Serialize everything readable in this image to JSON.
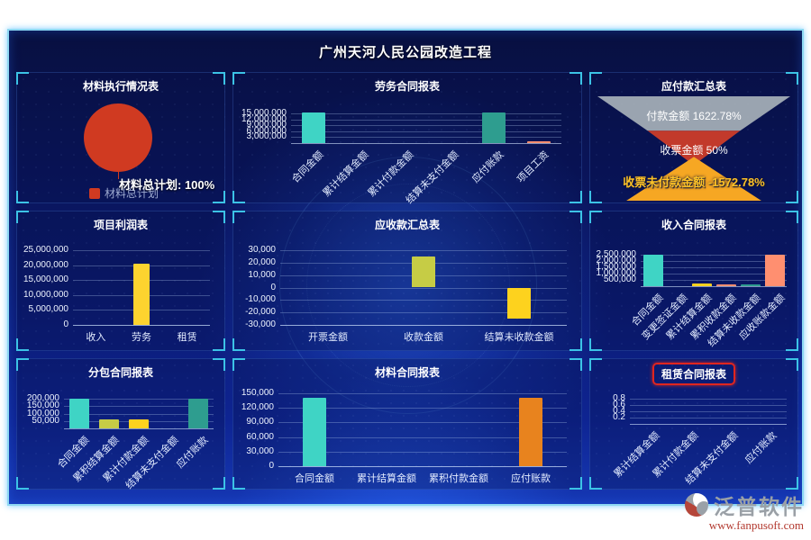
{
  "header": {
    "title": "广州天河人民公园改造工程"
  },
  "footer_logo": {
    "brand": "泛普软件",
    "url": "www.fanpusoft.com"
  },
  "colors": {
    "accent_cyan": "#3fd4c5",
    "teal": "#2e9d8f",
    "gold": "#fdd32f",
    "olive": "#c6cc45",
    "orange": "#e8831e",
    "salmon": "#ff8f70",
    "pie_red": "#d03a21",
    "bracket_cyan": "#3cc3e6",
    "highlight_red": "#e0251f"
  },
  "chart_data": [
    {
      "type": "pie",
      "title": "材料执行情况表",
      "series": [
        {
          "name": "材料总计划",
          "value": 100,
          "unit": "%"
        }
      ],
      "pie_color": "#d03a21",
      "center_label": "材料总计划: 100%",
      "legend": [
        "材料总计划"
      ],
      "legend_position": "bottom"
    },
    {
      "type": "bar",
      "title": "劳务合同报表",
      "categories": [
        "合同金额",
        "累计结算金额",
        "累计付款金额",
        "结算未支付金额",
        "应付账款",
        "项目工资"
      ],
      "values": [
        15500000,
        0,
        0,
        0,
        15300000,
        60000
      ],
      "bar_colors": [
        "#3fd4c5",
        "#3fd4c5",
        "#3fd4c5",
        "#3fd4c5",
        "#2e9d8f",
        "#ff8f70"
      ],
      "yticks": [
        {
          "label": "15,000,000",
          "v": 15000000
        },
        {
          "label": "12,000,000",
          "v": 12000000
        },
        {
          "label": "9,000,000",
          "v": 9000000
        },
        {
          "label": "6,000,000",
          "v": 6000000
        },
        {
          "label": "3,000,000",
          "v": 3000000
        }
      ],
      "ylim": [
        0,
        15000000
      ],
      "label_rotate": true,
      "grid": true
    },
    {
      "type": "funnel",
      "title": "应付款汇总表",
      "items": [
        {
          "label": "付款金额",
          "value": "1622.78%",
          "color": "#a7b1b8",
          "text_color": "#ffffff"
        },
        {
          "label": "收票金额",
          "value": "50%",
          "color": "#c23a2b",
          "text_color": "#ffffff"
        },
        {
          "label": "收票未付款金额",
          "value": "-1572.78%",
          "color": "#f6a723",
          "text_color": "#ffc226"
        }
      ]
    },
    {
      "type": "bar",
      "title": "项目利润表",
      "categories": [
        "收入",
        "劳务",
        "租赁"
      ],
      "values": [
        0,
        20500000,
        0
      ],
      "bar_colors": [
        "#fdd32f",
        "#fdd32f",
        "#fdd32f"
      ],
      "yticks": [
        {
          "label": "25,000,000",
          "v": 25000000
        },
        {
          "label": "20,000,000",
          "v": 20000000
        },
        {
          "label": "15,000,000",
          "v": 15000000
        },
        {
          "label": "10,000,000",
          "v": 10000000
        },
        {
          "label": "5,000,000",
          "v": 5000000
        },
        {
          "label": "0",
          "v": 0
        }
      ],
      "ylim": [
        0,
        25000000
      ],
      "label_rotate": false,
      "grid": true
    },
    {
      "type": "bar",
      "title": "应收款汇总表",
      "categories": [
        "开票金额",
        "收款金额",
        "结算未收款金额"
      ],
      "values": [
        0,
        25000,
        -25000
      ],
      "bar_colors": [
        "#c6cc45",
        "#c6cc45",
        "#fdd21e"
      ],
      "yticks": [
        {
          "label": "30,000",
          "v": 30000
        },
        {
          "label": "20,000",
          "v": 20000
        },
        {
          "label": "10,000",
          "v": 10000
        },
        {
          "label": "0",
          "v": 0
        },
        {
          "label": "-10,000",
          "v": -10000
        },
        {
          "label": "-20,000",
          "v": -20000
        },
        {
          "label": "-30,000",
          "v": -30000
        }
      ],
      "ylim": [
        -30000,
        30000
      ],
      "label_rotate": false,
      "grid": true
    },
    {
      "type": "bar",
      "title": "收入合同报表",
      "categories": [
        "合同金额",
        "变更签证金额",
        "累计结算金额",
        "累积收款金额",
        "结算未收款金额",
        "应收账款金额"
      ],
      "values": [
        2500000,
        0,
        190000,
        70000,
        120000,
        2470000
      ],
      "bar_colors": [
        "#3fd4c5",
        "#3fd4c5",
        "#fdd21e",
        "#ff8f70",
        "#2e9d8f",
        "#ff8f70"
      ],
      "yticks": [
        {
          "label": "2,500,000",
          "v": 2500000
        },
        {
          "label": "2,000,000",
          "v": 2000000
        },
        {
          "label": "1,500,000",
          "v": 1500000
        },
        {
          "label": "1,000,000",
          "v": 1000000
        },
        {
          "label": "500,000",
          "v": 500000
        }
      ],
      "ylim": [
        0,
        2500000
      ],
      "label_rotate": true,
      "grid": true
    },
    {
      "type": "bar",
      "title": "分包合同报表",
      "categories": [
        "合同金额",
        "累积结算金额",
        "累计付款金额",
        "结算未支付金额",
        "应付账款"
      ],
      "values": [
        200000,
        60000,
        60000,
        0,
        200000
      ],
      "bar_colors": [
        "#3fd4c5",
        "#c6cc45",
        "#fdd21e",
        "#fdd21e",
        "#2e9d8f"
      ],
      "yticks": [
        {
          "label": "200,000",
          "v": 200000
        },
        {
          "label": "150,000",
          "v": 150000
        },
        {
          "label": "100,000",
          "v": 100000
        },
        {
          "label": "50,000",
          "v": 50000
        }
      ],
      "ylim": [
        0,
        200000
      ],
      "label_rotate": true,
      "grid": true
    },
    {
      "type": "bar",
      "title": "材料合同报表",
      "categories": [
        "合同金额",
        "累计结算金额",
        "累积付款金额",
        "应付账款"
      ],
      "values": [
        140000,
        0,
        0,
        140000
      ],
      "bar_colors": [
        "#3fd4c5",
        "#3fd4c5",
        "#3fd4c5",
        "#e8831e"
      ],
      "yticks": [
        {
          "label": "150,000",
          "v": 150000
        },
        {
          "label": "120,000",
          "v": 120000
        },
        {
          "label": "90,000",
          "v": 90000
        },
        {
          "label": "60,000",
          "v": 60000
        },
        {
          "label": "30,000",
          "v": 30000
        },
        {
          "label": "0",
          "v": 0
        }
      ],
      "ylim": [
        0,
        150000
      ],
      "label_rotate": false,
      "grid": true
    },
    {
      "type": "bar",
      "title": "租赁合同报表",
      "highlighted": true,
      "categories": [
        "累计结算金额",
        "累计付款金额",
        "结算未支付金额",
        "应付账款"
      ],
      "values": [
        0,
        0,
        0,
        0
      ],
      "bar_colors": [
        "#3fd4c5",
        "#3fd4c5",
        "#3fd4c5",
        "#3fd4c5"
      ],
      "yticks": [
        {
          "label": "0.8",
          "v": 0.8
        },
        {
          "label": "0.6",
          "v": 0.6
        },
        {
          "label": "0.4",
          "v": 0.4
        },
        {
          "label": "0.2",
          "v": 0.2
        }
      ],
      "ylim": [
        0,
        0.8
      ],
      "label_rotate": true,
      "grid": true
    }
  ]
}
